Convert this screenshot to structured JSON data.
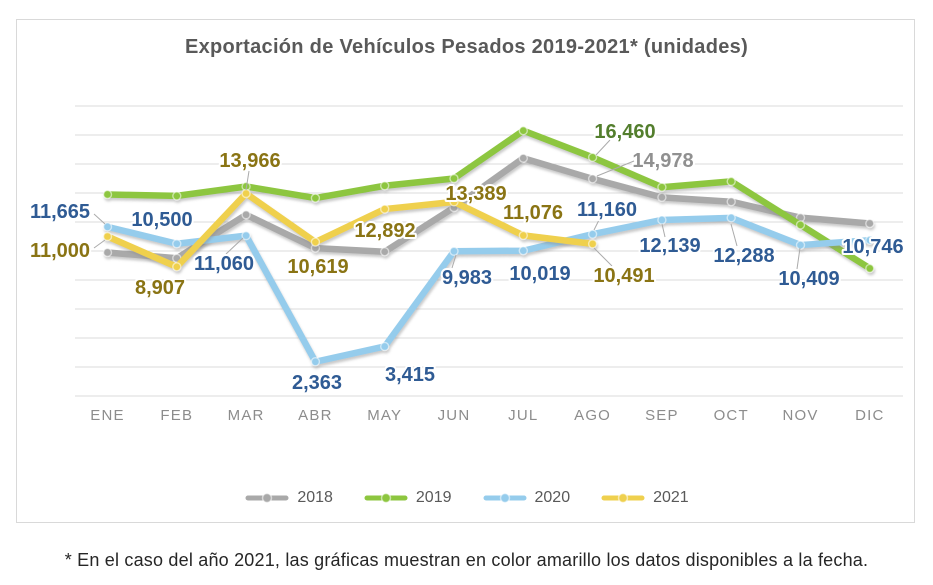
{
  "chart_data": {
    "type": "line",
    "title": "Exportación de Vehículos Pesados 2019-2021* (unidades)",
    "footnote": "* En el caso del año 2021, las gráficas muestran en color amarillo los datos disponibles a la fecha.",
    "categories": [
      "ENE",
      "FEB",
      "MAR",
      "ABR",
      "MAY",
      "JUN",
      "JUL",
      "AGO",
      "SEP",
      "OCT",
      "NOV",
      "DIC"
    ],
    "ylim": [
      0,
      20000
    ],
    "gridline_step": 2000,
    "grid": "horizontal-only",
    "legend_position": "bottom",
    "axis_label_color": "#8C8C8C",
    "gridline_color": "#DBDBDB",
    "series": [
      {
        "name": "2018",
        "color": "#A9A9A9",
        "label_color": "#909090",
        "values": [
          9900,
          9500,
          12500,
          10200,
          9950,
          13000,
          16400,
          14978,
          13700,
          13400,
          12300,
          11900
        ],
        "point_labels": {
          "7": "14,978"
        }
      },
      {
        "name": "2019",
        "color": "#8DC63F",
        "label_color": "#537E2D",
        "values": [
          13900,
          13800,
          14450,
          13650,
          14500,
          15000,
          18300,
          16460,
          14400,
          14800,
          11800,
          8800
        ],
        "point_labels": {
          "7": "16,460"
        }
      },
      {
        "name": "2020",
        "color": "#95CCEC",
        "label_color": "#2F5B94",
        "values": [
          11665,
          10500,
          11060,
          2363,
          3415,
          9983,
          10019,
          11160,
          12139,
          12288,
          10409,
          10746
        ],
        "point_labels": {
          "0": "11,665",
          "1": "10,500",
          "2": "11,060",
          "3": "2,363",
          "4": "3,415",
          "5": "9,983",
          "6": "10,019",
          "7": "11,160",
          "8": "12,139",
          "9": "12,288",
          "10": "10,409",
          "11": "10,746"
        }
      },
      {
        "name": "2021",
        "color": "#EFD04E",
        "label_color": "#8A7414",
        "values": [
          11000,
          8907,
          13966,
          10619,
          12892,
          13389,
          11076,
          10491
        ],
        "point_labels": {
          "0": "11,000",
          "1": "8,907",
          "2": "13,966",
          "3": "10,619",
          "4": "12,892",
          "5": "13,389",
          "6": "11,076",
          "7": "10,491"
        }
      }
    ]
  }
}
